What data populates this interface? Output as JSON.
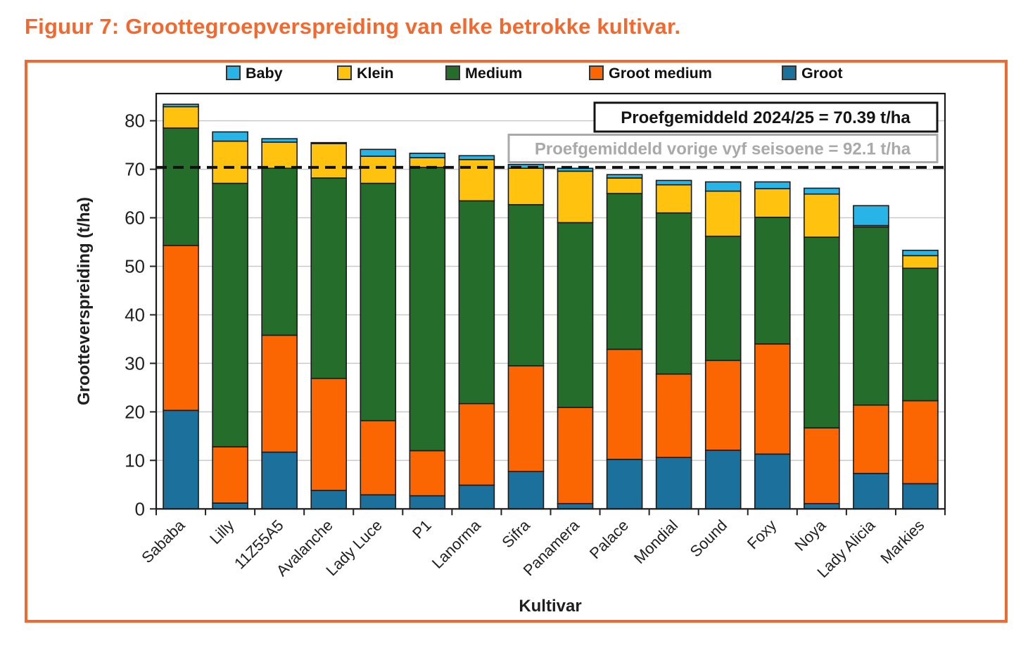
{
  "figure": {
    "title": "Figuur 7: Groottegroepverspreiding van elke betrokke kultivar.",
    "accent_color": "#F2692F",
    "text_color": "#1F1F1F",
    "grid_color": "#C9C9C9",
    "muted_color": "#A9A9A9"
  },
  "chart_data": {
    "type": "bar",
    "stacked": true,
    "xlabel": "Kultivar",
    "ylabel": "Grootteverspreiding (t/ha)",
    "ylim": [
      0,
      85.6
    ],
    "yticks": [
      0,
      10,
      20,
      30,
      40,
      50,
      60,
      70,
      80
    ],
    "grid": true,
    "legend_position": "top",
    "legend_order": [
      "Baby",
      "Klein",
      "Medium",
      "Groot medium",
      "Groot"
    ],
    "categories": [
      "Sababa",
      "Lilly",
      "11Z55A5",
      "Avalanche",
      "Lady Luce",
      "P1",
      "Lanorma",
      "Sifra",
      "Panamera",
      "Palace",
      "Mondial",
      "Sound",
      "Foxy",
      "Noya",
      "Lady Alicia",
      "Markies"
    ],
    "series": [
      {
        "name": "Groot",
        "color": "#1B719C",
        "values": [
          20.3,
          1.2,
          11.7,
          3.8,
          2.9,
          2.7,
          4.9,
          7.7,
          1.1,
          10.2,
          10.6,
          12.1,
          11.3,
          1.1,
          7.3,
          5.2
        ]
      },
      {
        "name": "Groot medium",
        "color": "#FB6602",
        "values": [
          34.0,
          11.6,
          24.1,
          23.1,
          15.3,
          9.3,
          16.8,
          21.8,
          19.8,
          22.7,
          17.2,
          18.5,
          22.7,
          15.6,
          14.1,
          17.1
        ]
      },
      {
        "name": "Medium",
        "color": "#256D2B",
        "values": [
          24.2,
          54.3,
          34.4,
          41.3,
          48.9,
          58.4,
          41.8,
          33.2,
          38.1,
          32.1,
          33.2,
          25.6,
          26.1,
          39.3,
          36.7,
          27.3
        ]
      },
      {
        "name": "Klein",
        "color": "#FFC20E",
        "values": [
          4.4,
          8.7,
          5.4,
          7.1,
          5.6,
          2.0,
          8.5,
          7.5,
          10.6,
          3.2,
          5.8,
          9.3,
          5.9,
          8.9,
          0.3,
          2.6
        ]
      },
      {
        "name": "Baby",
        "color": "#29B4E8",
        "values": [
          0.5,
          1.9,
          0.7,
          0.2,
          1.4,
          0.9,
          0.8,
          0.8,
          0.6,
          0.7,
          0.9,
          1.9,
          1.4,
          1.2,
          4.1,
          1.1
        ]
      }
    ],
    "reference_lines": [
      {
        "value": 70.39,
        "style": "dashed",
        "color": "#111111"
      }
    ],
    "annotations": [
      {
        "text": "Proefgemiddeld 2024/25 = 70.39 t/ha",
        "color": "#111111"
      },
      {
        "text": "Proefgemiddeld vorige vyf seisoene = 92.1 t/ha",
        "color": "#A9A9A9"
      }
    ]
  }
}
